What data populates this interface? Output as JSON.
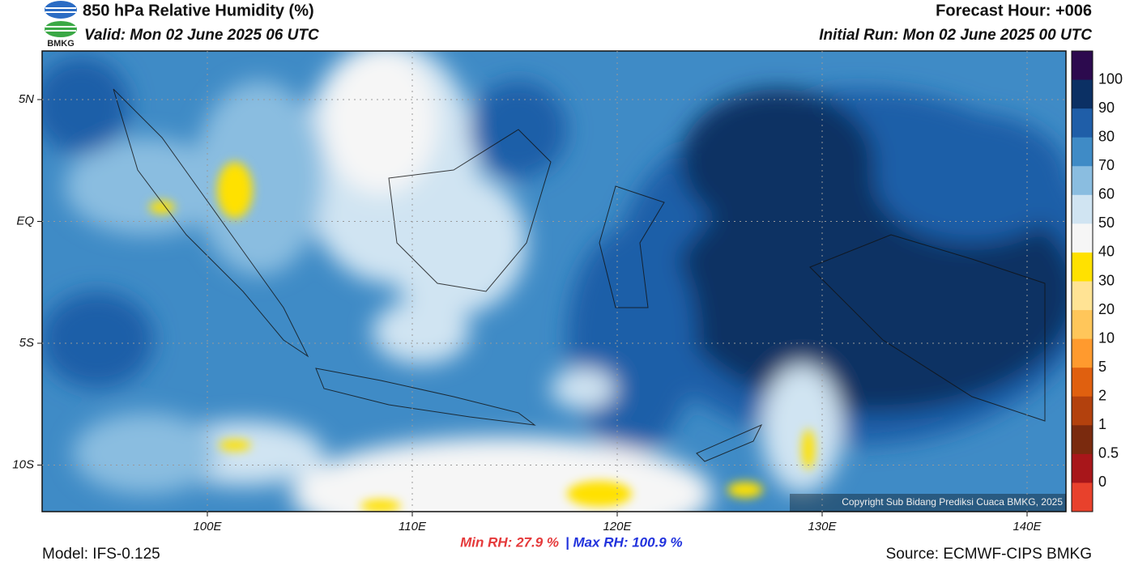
{
  "header": {
    "title": "850 hPa Relative Humidity (%)",
    "valid": "Valid: Mon 02 June 2025 06 UTC",
    "forecast_hour": "Forecast Hour: +006",
    "initial_run": "Initial Run: Mon 02 June 2025 00 UTC",
    "logo_text": "BMKG"
  },
  "map": {
    "lat_labels": [
      "5N",
      "EQ",
      "5S",
      "10S"
    ],
    "lon_labels": [
      "100E",
      "110E",
      "120E",
      "130E",
      "140E"
    ],
    "copyright": "Copyright Sub Bidang Prediksi Cuaca BMKG, 2025"
  },
  "colorbar": {
    "labels": [
      100,
      90,
      80,
      70,
      60,
      50,
      40,
      30,
      20,
      10,
      5,
      2,
      1,
      0.5,
      0
    ],
    "colors": [
      "#2c0a4e",
      "#0b3064",
      "#1f5ea8",
      "#3f8bc6",
      "#8abde0",
      "#d0e4f2",
      "#f6f6f6",
      "#ffe100",
      "#ffe394",
      "#ffc65a",
      "#ff9a2e",
      "#e0600f",
      "#b3410d",
      "#7a2a0e",
      "#a8161a",
      "#e8412c"
    ]
  },
  "footer": {
    "model": "Model: IFS-0.125",
    "min_rh": "Min RH:  27.9 %",
    "max_rh": "| Max RH: 100.9 %",
    "source": "Source: ECMWF-CIPS BMKG"
  }
}
